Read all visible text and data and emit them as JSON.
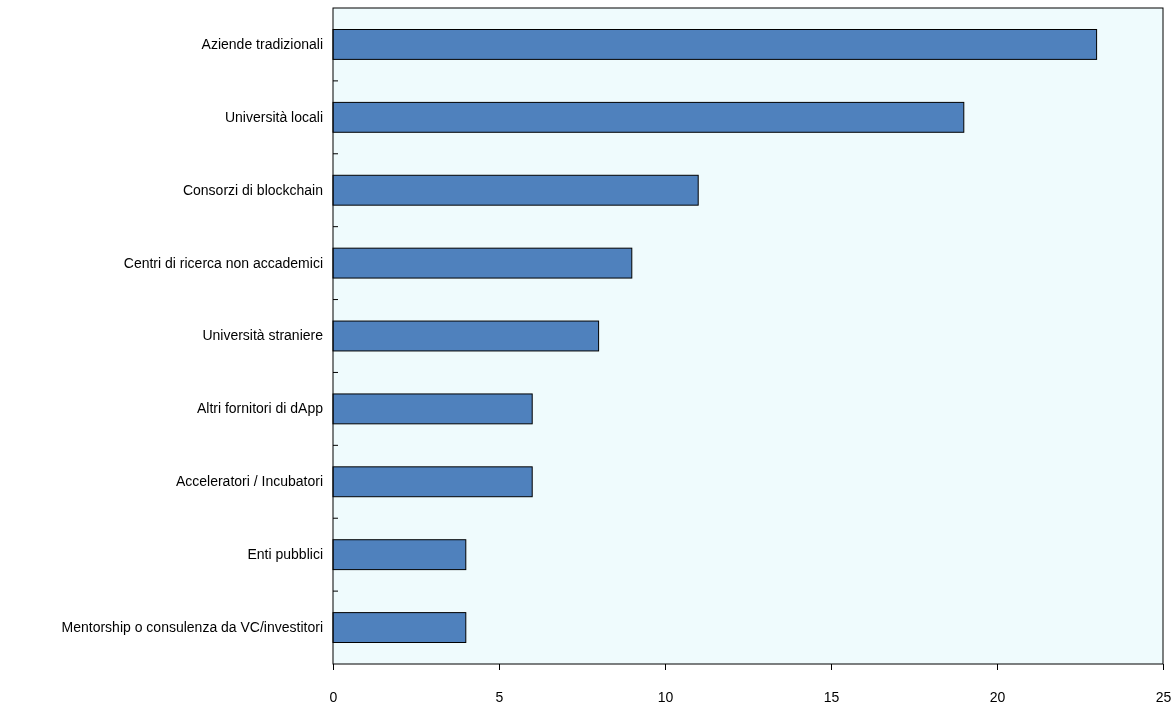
{
  "chart_data": {
    "type": "bar",
    "orientation": "horizontal",
    "categories": [
      "Aziende tradizionali",
      "Università locali",
      "Consorzi di blockchain",
      "Centri di ricerca non accademici",
      "Università straniere",
      "Altri fornitori di dApp",
      "Acceleratori / Incubatori",
      "Enti pubblici",
      "Mentorship o consulenza da VC/investitori"
    ],
    "values": [
      23,
      19,
      11,
      9,
      8,
      6,
      6,
      4,
      4
    ],
    "color": "#4f81bd",
    "xlim": [
      0,
      25
    ],
    "xticks": [
      0,
      5,
      10,
      15,
      20,
      25
    ],
    "grid": false
  }
}
